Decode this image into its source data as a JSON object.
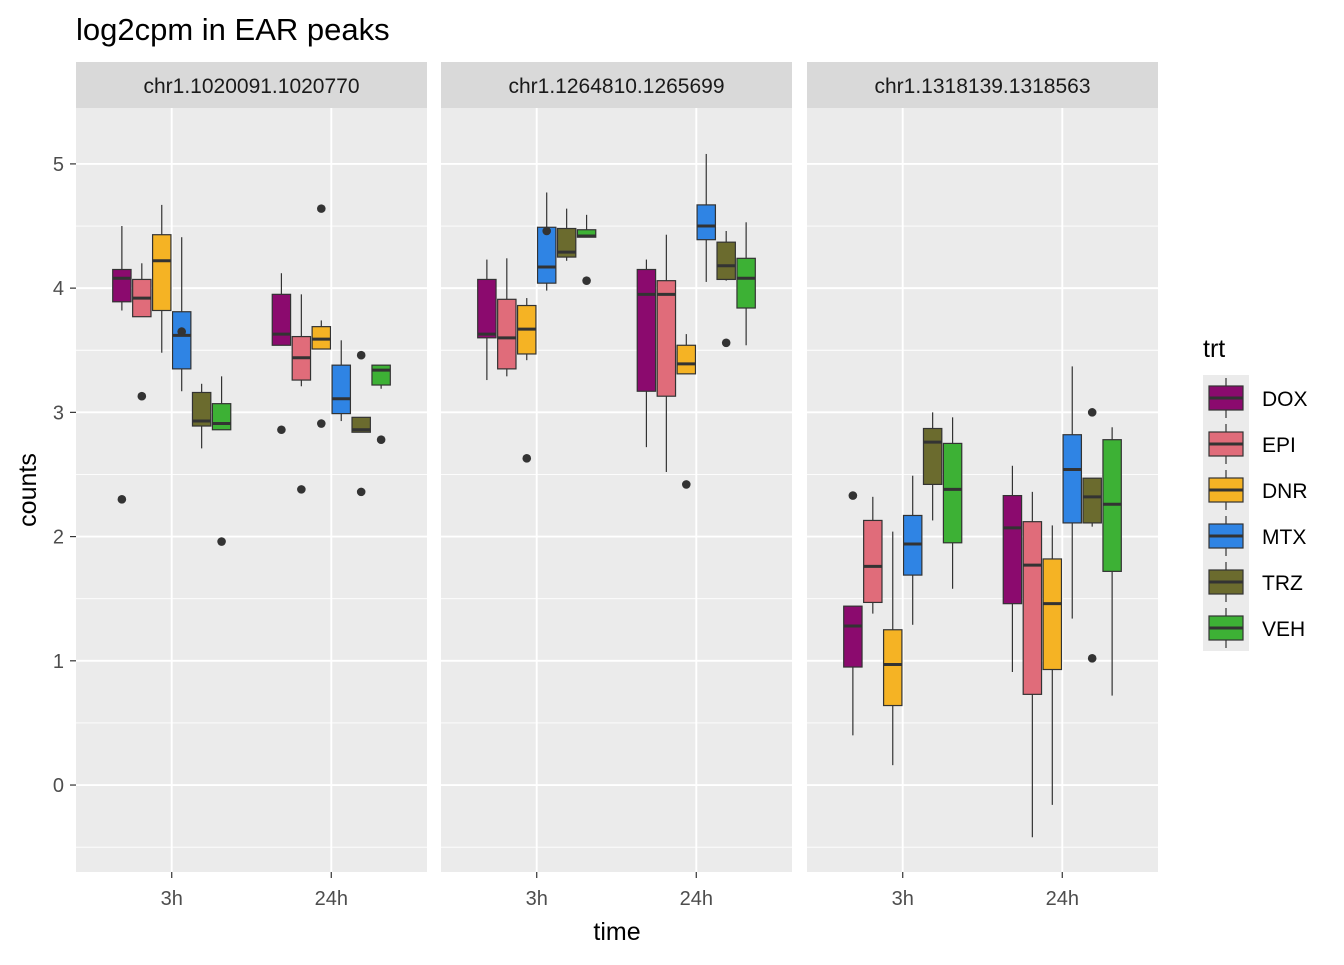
{
  "chart_data": {
    "type": "boxplot",
    "title": "log2cpm in EAR peaks",
    "xlabel": "time",
    "ylabel": "counts",
    "ylim": [
      -0.7,
      5.45
    ],
    "y_ticks": [
      0,
      1,
      2,
      3,
      4,
      5
    ],
    "x_categories": [
      "3h",
      "24h"
    ],
    "legend": {
      "title": "trt",
      "position": "right",
      "entries": [
        {
          "name": "DOX",
          "color": "#8B0A6E"
        },
        {
          "name": "EPI",
          "color": "#E06C7A"
        },
        {
          "name": "DNR",
          "color": "#F5B324"
        },
        {
          "name": "MTX",
          "color": "#2F84E4"
        },
        {
          "name": "TRZ",
          "color": "#6B6B2E"
        },
        {
          "name": "VEH",
          "color": "#3DB135"
        }
      ]
    },
    "panels": [
      {
        "label": "chr1.1020091.1020770",
        "groups": [
          {
            "time": "3h",
            "boxes": [
              {
                "min": 3.82,
                "q1": 3.89,
                "median": 4.08,
                "q3": 4.15,
                "max": 4.5,
                "outliers": [
                  2.3
                ]
              },
              {
                "min": 3.77,
                "q1": 3.77,
                "median": 3.92,
                "q3": 4.07,
                "max": 4.2,
                "outliers": [
                  3.13
                ]
              },
              {
                "min": 3.48,
                "q1": 3.82,
                "median": 4.22,
                "q3": 4.43,
                "max": 4.67,
                "outliers": []
              },
              {
                "min": 3.17,
                "q1": 3.35,
                "median": 3.62,
                "q3": 3.81,
                "max": 4.41,
                "outliers": [
                  3.65
                ]
              },
              {
                "min": 2.71,
                "q1": 2.89,
                "median": 2.93,
                "q3": 3.16,
                "max": 3.23,
                "outliers": []
              },
              {
                "min": 2.86,
                "q1": 2.86,
                "median": 2.91,
                "q3": 3.07,
                "max": 3.29,
                "outliers": [
                  1.96
                ]
              }
            ]
          },
          {
            "time": "24h",
            "boxes": [
              {
                "min": 3.54,
                "q1": 3.54,
                "median": 3.63,
                "q3": 3.95,
                "max": 4.12,
                "outliers": [
                  2.86
                ]
              },
              {
                "min": 3.21,
                "q1": 3.26,
                "median": 3.44,
                "q3": 3.61,
                "max": 3.95,
                "outliers": [
                  2.38
                ]
              },
              {
                "min": 3.51,
                "q1": 3.51,
                "median": 3.59,
                "q3": 3.69,
                "max": 3.74,
                "outliers": [
                  4.64,
                  2.91
                ]
              },
              {
                "min": 2.93,
                "q1": 2.99,
                "median": 3.11,
                "q3": 3.38,
                "max": 3.58,
                "outliers": []
              },
              {
                "min": 2.84,
                "q1": 2.84,
                "median": 2.86,
                "q3": 2.96,
                "max": 2.96,
                "outliers": [
                  3.46,
                  2.36
                ]
              },
              {
                "min": 3.19,
                "q1": 3.22,
                "median": 3.34,
                "q3": 3.38,
                "max": 3.38,
                "outliers": [
                  2.78
                ]
              }
            ]
          }
        ]
      },
      {
        "label": "chr1.1264810.1265699",
        "groups": [
          {
            "time": "3h",
            "boxes": [
              {
                "min": 3.26,
                "q1": 3.6,
                "median": 3.63,
                "q3": 4.07,
                "max": 4.23,
                "outliers": []
              },
              {
                "min": 3.29,
                "q1": 3.35,
                "median": 3.6,
                "q3": 3.91,
                "max": 4.24,
                "outliers": []
              },
              {
                "min": 3.42,
                "q1": 3.47,
                "median": 3.67,
                "q3": 3.86,
                "max": 3.92,
                "outliers": [
                  2.63
                ]
              },
              {
                "min": 3.98,
                "q1": 4.04,
                "median": 4.17,
                "q3": 4.49,
                "max": 4.77,
                "outliers": [
                  4.46
                ]
              },
              {
                "min": 4.22,
                "q1": 4.25,
                "median": 4.29,
                "q3": 4.48,
                "max": 4.64,
                "outliers": []
              },
              {
                "min": 4.41,
                "q1": 4.41,
                "median": 4.42,
                "q3": 4.47,
                "max": 4.59,
                "outliers": [
                  4.06
                ]
              }
            ]
          },
          {
            "time": "24h",
            "boxes": [
              {
                "min": 2.72,
                "q1": 3.17,
                "median": 3.95,
                "q3": 4.15,
                "max": 4.23,
                "outliers": []
              },
              {
                "min": 2.52,
                "q1": 3.13,
                "median": 3.95,
                "q3": 4.06,
                "max": 4.43,
                "outliers": []
              },
              {
                "min": 3.31,
                "q1": 3.31,
                "median": 3.39,
                "q3": 3.54,
                "max": 3.63,
                "outliers": [
                  2.42
                ]
              },
              {
                "min": 4.05,
                "q1": 4.39,
                "median": 4.5,
                "q3": 4.67,
                "max": 5.08,
                "outliers": []
              },
              {
                "min": 4.06,
                "q1": 4.07,
                "median": 4.18,
                "q3": 4.37,
                "max": 4.46,
                "outliers": [
                  3.56
                ]
              },
              {
                "min": 3.54,
                "q1": 3.84,
                "median": 4.08,
                "q3": 4.24,
                "max": 4.53,
                "outliers": []
              }
            ]
          }
        ]
      },
      {
        "label": "chr1.1318139.1318563",
        "groups": [
          {
            "time": "3h",
            "boxes": [
              {
                "min": 0.4,
                "q1": 0.95,
                "median": 1.28,
                "q3": 1.44,
                "max": 1.44,
                "outliers": [
                  2.33
                ]
              },
              {
                "min": 1.38,
                "q1": 1.47,
                "median": 1.76,
                "q3": 2.13,
                "max": 2.32,
                "outliers": []
              },
              {
                "min": 0.16,
                "q1": 0.64,
                "median": 0.97,
                "q3": 1.25,
                "max": 2.04,
                "outliers": []
              },
              {
                "min": 1.29,
                "q1": 1.69,
                "median": 1.94,
                "q3": 2.17,
                "max": 2.49,
                "outliers": []
              },
              {
                "min": 2.13,
                "q1": 2.42,
                "median": 2.76,
                "q3": 2.87,
                "max": 3.0,
                "outliers": []
              },
              {
                "min": 1.58,
                "q1": 1.95,
                "median": 2.38,
                "q3": 2.75,
                "max": 2.96,
                "outliers": []
              }
            ]
          },
          {
            "time": "24h",
            "boxes": [
              {
                "min": 0.91,
                "q1": 1.46,
                "median": 2.07,
                "q3": 2.33,
                "max": 2.57,
                "outliers": []
              },
              {
                "min": -0.42,
                "q1": 0.73,
                "median": 1.77,
                "q3": 2.12,
                "max": 2.36,
                "outliers": []
              },
              {
                "min": -0.16,
                "q1": 0.93,
                "median": 1.46,
                "q3": 1.82,
                "max": 2.09,
                "outliers": []
              },
              {
                "min": 1.34,
                "q1": 2.11,
                "median": 2.54,
                "q3": 2.82,
                "max": 3.37,
                "outliers": []
              },
              {
                "min": 2.08,
                "q1": 2.11,
                "median": 2.32,
                "q3": 2.47,
                "max": 2.47,
                "outliers": [
                  3.0,
                  1.02
                ]
              },
              {
                "min": 0.72,
                "q1": 1.72,
                "median": 2.26,
                "q3": 2.78,
                "max": 2.88,
                "outliers": []
              }
            ]
          }
        ]
      }
    ]
  }
}
